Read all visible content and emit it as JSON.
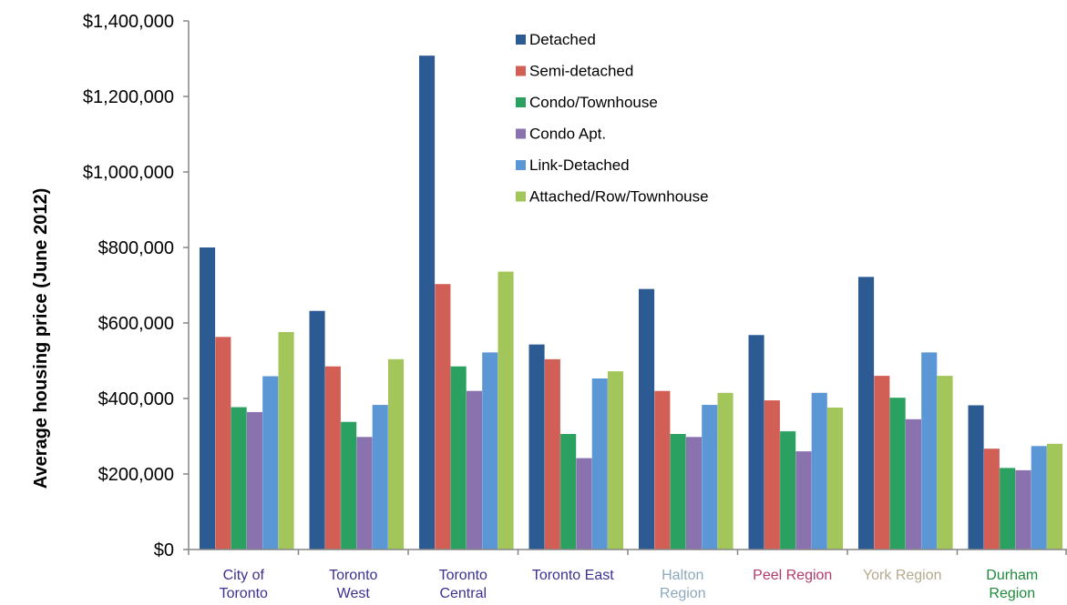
{
  "chart_data": {
    "type": "bar",
    "title": "",
    "xlabel": "",
    "ylabel": "Average housing price (June 2012)",
    "ylim": [
      0,
      1400000
    ],
    "yticks": [
      0,
      200000,
      400000,
      600000,
      800000,
      1000000,
      1200000,
      1400000
    ],
    "ytick_labels": [
      "$0",
      "$200,000",
      "$400,000",
      "$600,000",
      "$800,000",
      "$1,000,000",
      "$1,200,000",
      "$1,400,000"
    ],
    "grid": false,
    "legend_position": "top-center",
    "categories": [
      {
        "lines": [
          "City of",
          "Toronto"
        ],
        "color": "#3a3190"
      },
      {
        "lines": [
          "Toronto",
          "West"
        ],
        "color": "#3a3190"
      },
      {
        "lines": [
          "Toronto",
          "Central"
        ],
        "color": "#3a3190"
      },
      {
        "lines": [
          "Toronto East"
        ],
        "color": "#3a3190"
      },
      {
        "lines": [
          "Halton",
          "Region"
        ],
        "color": "#8ea9bd"
      },
      {
        "lines": [
          "Peel Region"
        ],
        "color": "#b23a6a"
      },
      {
        "lines": [
          "York Region"
        ],
        "color": "#b5a98f"
      },
      {
        "lines": [
          "Durham",
          "Region"
        ],
        "color": "#1e8a3c"
      }
    ],
    "series": [
      {
        "name": "Detached",
        "color": "#2c5a93",
        "values": [
          800000,
          632000,
          1308000,
          543000,
          690000,
          568000,
          722000,
          382000
        ]
      },
      {
        "name": "Semi-detached",
        "color": "#d25f55",
        "values": [
          563000,
          485000,
          703000,
          504000,
          420000,
          395000,
          460000,
          267000
        ]
      },
      {
        "name": "Condo/Townhouse",
        "color": "#2aa160",
        "values": [
          377000,
          338000,
          485000,
          306000,
          306000,
          313000,
          402000,
          216000
        ]
      },
      {
        "name": "Condo Apt.",
        "color": "#8a72ae",
        "values": [
          364000,
          298000,
          420000,
          242000,
          298000,
          260000,
          345000,
          210000
        ]
      },
      {
        "name": "Link-Detached",
        "color": "#5c97d5",
        "values": [
          459000,
          383000,
          522000,
          453000,
          383000,
          415000,
          522000,
          274000
        ]
      },
      {
        "name": "Attached/Row/Townhouse",
        "color": "#a3c65b",
        "values": [
          576000,
          504000,
          736000,
          472000,
          415000,
          376000,
          460000,
          280000
        ]
      }
    ]
  }
}
